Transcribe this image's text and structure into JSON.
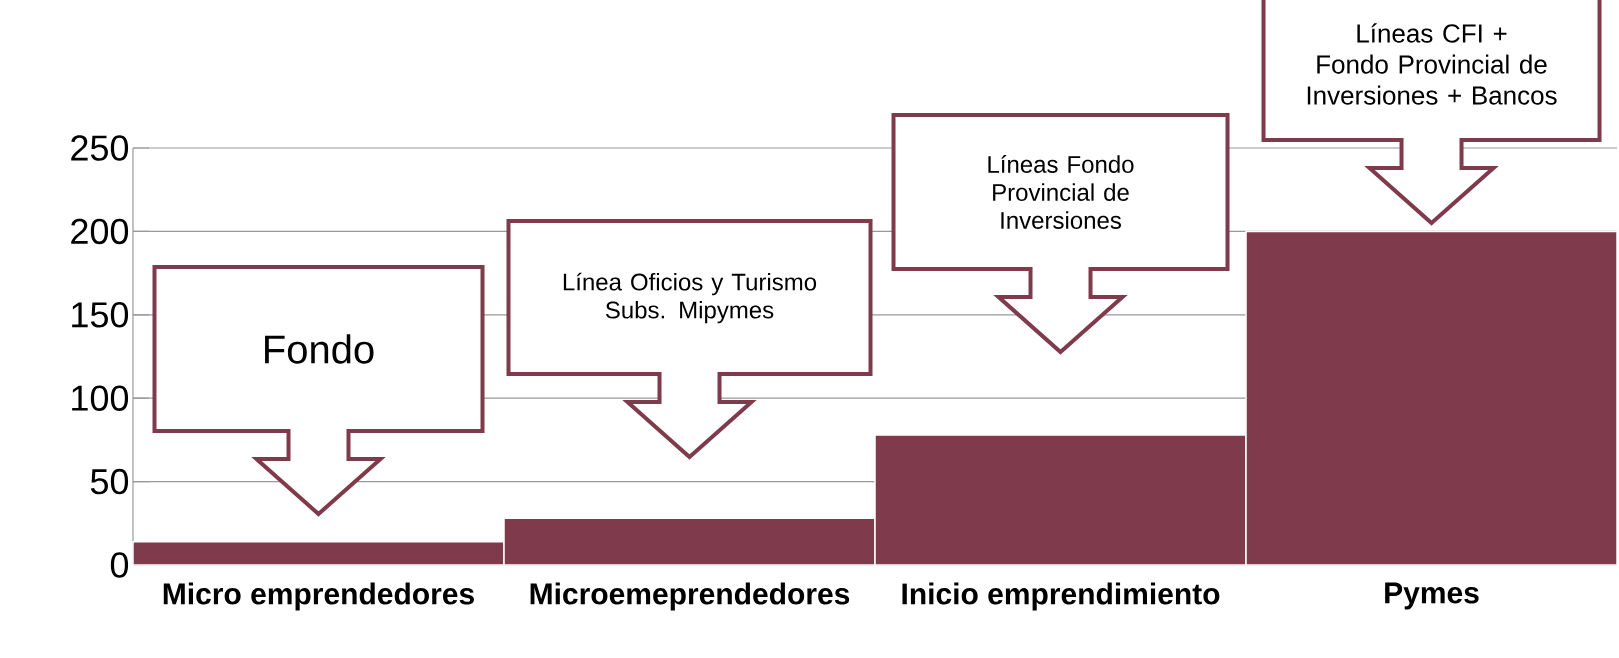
{
  "chart_data": {
    "type": "bar",
    "categories": [
      "Micro emprendedores",
      "Microemeprendedores",
      "Inicio emprendimiento",
      "Pymes"
    ],
    "values": [
      14,
      28,
      78,
      200
    ],
    "color": "#7f3b4b",
    "ylim": [
      0,
      250
    ],
    "yticks": [
      0,
      50,
      100,
      150,
      200,
      250
    ],
    "grid": "y",
    "annotations": [
      "Fondo",
      "Línea Oficios y Turismo Subs. Mipymes",
      "Líneas Fondo Provincial de Inversiones",
      "Líneas CFI + Fondo Provincial de Inversiones + Bancos"
    ]
  }
}
